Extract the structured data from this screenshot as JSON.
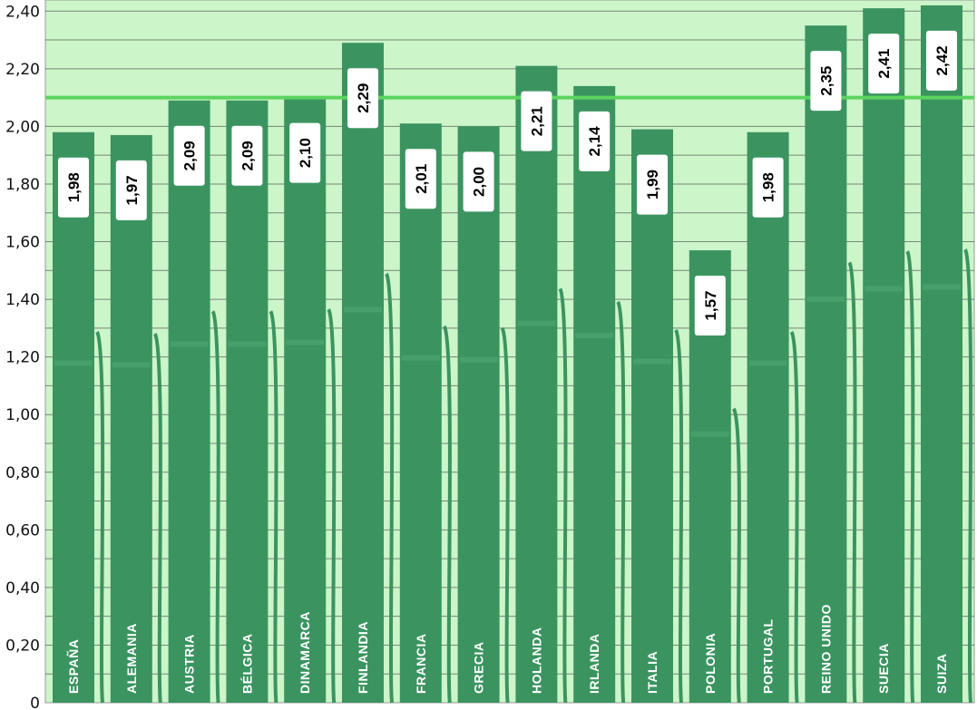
{
  "chart_data": {
    "type": "bar",
    "categories": [
      "ESPAÑA",
      "ALEMANIA",
      "AUSTRIA",
      "BÉLGICA",
      "DINAMARCA",
      "FINLANDIA",
      "FRANCIA",
      "GRECIA",
      "HOLANDA",
      "IRLANDA",
      "ITALIA",
      "POLONIA",
      "PORTUGAL",
      "REINO UNIDO",
      "SUECIA",
      "SUIZA"
    ],
    "values": [
      1.98,
      1.97,
      2.09,
      2.09,
      2.1,
      2.29,
      2.01,
      2.0,
      2.21,
      2.14,
      1.99,
      1.57,
      1.98,
      2.35,
      2.41,
      2.42
    ],
    "value_labels": [
      "1,98",
      "1,97",
      "2,09",
      "2,09",
      "2,10",
      "2,29",
      "2,01",
      "2,00",
      "2,21",
      "2,14",
      "1,99",
      "1,57",
      "1,98",
      "2,35",
      "2,41",
      "2,42"
    ],
    "yticks": [
      0,
      0.2,
      0.4,
      0.6,
      0.8,
      1.0,
      1.2,
      1.4,
      1.6,
      1.8,
      2.0,
      2.2,
      2.4
    ],
    "ytick_labels": [
      "0",
      "0,20",
      "0,40",
      "0,60",
      "0,80",
      "1,00",
      "1,20",
      "1,40",
      "1,60",
      "1,80",
      "2,00",
      "2,20",
      "2,40"
    ],
    "ylim": [
      0,
      2.5
    ],
    "reference_line": 2.1,
    "title": "",
    "xlabel": "",
    "ylabel": "",
    "grid": true,
    "colors": {
      "plot_background": "#ccf5c9",
      "bar": "#3b9460",
      "bar_light": "#4fa872",
      "reference_line": "#5bd45f",
      "grid": "#2e2e2e",
      "label_box": "#ffffff"
    }
  }
}
